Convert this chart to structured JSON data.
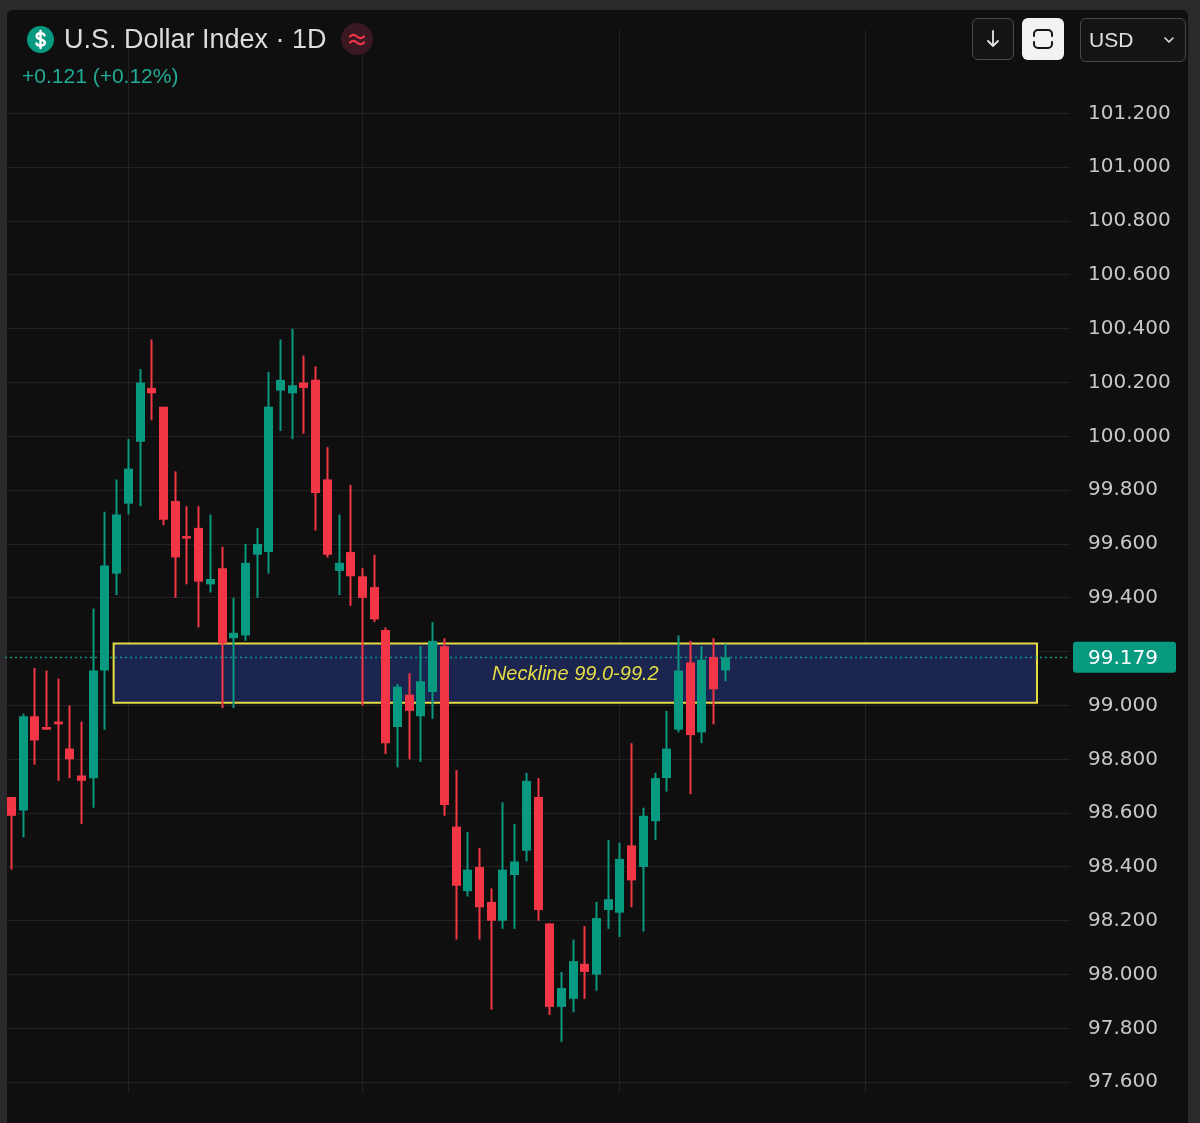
{
  "chart_data": {
    "type": "candlestick",
    "title": "U.S. Dollar Index · 1D",
    "subtitle": "+0.121 (+0.12%)",
    "categories": [
      null,
      null,
      null,
      null,
      null,
      null,
      null,
      null,
      null,
      null,
      null,
      null,
      null,
      null,
      null,
      null,
      null,
      null,
      null,
      null,
      null,
      null,
      null,
      null,
      null,
      null,
      null,
      null,
      null,
      null,
      null,
      null,
      null,
      null,
      null,
      null,
      null,
      null,
      null,
      null,
      null,
      null,
      null,
      null,
      null,
      null,
      null,
      null,
      null,
      null,
      null,
      null,
      null,
      null,
      null,
      null,
      null,
      null,
      null,
      null,
      null,
      null,
      null,
      null,
      null,
      null,
      null,
      null,
      null,
      null,
      null,
      null,
      null,
      null,
      null,
      null,
      null,
      null,
      null,
      null,
      null,
      null,
      null,
      null,
      null,
      null,
      null,
      null,
      null,
      null,
      null
    ],
    "ohlc": [
      [
        98.66,
        98.66,
        98.39,
        98.59
      ],
      [
        98.61,
        98.97,
        98.51,
        98.96
      ],
      [
        98.96,
        99.14,
        98.78,
        98.87
      ],
      [
        98.92,
        99.13,
        98.91,
        98.91
      ],
      [
        98.94,
        99.1,
        98.72,
        98.93
      ],
      [
        98.84,
        99.0,
        98.73,
        98.8
      ],
      [
        98.74,
        98.94,
        98.56,
        98.72
      ],
      [
        98.73,
        99.36,
        98.62,
        99.13
      ],
      [
        99.13,
        99.72,
        98.91,
        99.52
      ],
      [
        99.49,
        99.84,
        99.41,
        99.71
      ],
      [
        99.75,
        99.99,
        99.71,
        99.88
      ],
      [
        99.98,
        100.25,
        99.74,
        100.2
      ],
      [
        100.18,
        100.36,
        100.06,
        100.16
      ],
      [
        100.11,
        100.11,
        99.67,
        99.69
      ],
      [
        99.76,
        99.87,
        99.4,
        99.55
      ],
      [
        99.63,
        99.74,
        99.45,
        99.62
      ],
      [
        99.66,
        99.74,
        99.29,
        99.46
      ],
      [
        99.45,
        99.71,
        99.42,
        99.47
      ],
      [
        99.51,
        99.59,
        98.99,
        99.23
      ],
      [
        99.25,
        99.4,
        98.99,
        99.27
      ],
      [
        99.26,
        99.6,
        99.24,
        99.53
      ],
      [
        99.56,
        99.66,
        99.4,
        99.6
      ],
      [
        99.57,
        100.24,
        99.49,
        100.11
      ],
      [
        100.17,
        100.36,
        100.02,
        100.21
      ],
      [
        100.16,
        100.4,
        99.99,
        100.19
      ],
      [
        100.2,
        100.3,
        100.01,
        100.18
      ],
      [
        100.21,
        100.26,
        99.65,
        99.79
      ],
      [
        99.84,
        99.96,
        99.55,
        99.56
      ],
      [
        99.5,
        99.71,
        99.41,
        99.53
      ],
      [
        99.57,
        99.82,
        99.37,
        99.48
      ],
      [
        99.48,
        99.51,
        99.0,
        99.4
      ],
      [
        99.44,
        99.56,
        99.31,
        99.32
      ],
      [
        99.28,
        99.29,
        98.82,
        98.86
      ],
      [
        98.92,
        99.08,
        98.77,
        99.07
      ],
      [
        99.04,
        99.12,
        98.8,
        98.98
      ],
      [
        98.96,
        99.22,
        98.79,
        99.09
      ],
      [
        99.05,
        99.31,
        98.95,
        99.24
      ],
      [
        99.22,
        99.25,
        98.59,
        98.63
      ],
      [
        98.55,
        98.76,
        98.13,
        98.33
      ],
      [
        98.31,
        98.53,
        98.29,
        98.39
      ],
      [
        98.4,
        98.47,
        98.13,
        98.25
      ],
      [
        98.27,
        98.32,
        97.87,
        98.2
      ],
      [
        98.2,
        98.64,
        98.17,
        98.39
      ],
      [
        98.37,
        98.56,
        98.17,
        98.42
      ],
      [
        98.46,
        98.75,
        98.42,
        98.72
      ],
      [
        98.66,
        98.73,
        98.2,
        98.24
      ],
      [
        98.19,
        98.19,
        97.85,
        97.88
      ],
      [
        97.88,
        98.01,
        97.75,
        97.95
      ],
      [
        97.91,
        98.13,
        97.86,
        98.05
      ],
      [
        98.04,
        98.18,
        97.91,
        98.01
      ],
      [
        98.0,
        98.27,
        97.94,
        98.21
      ],
      [
        98.24,
        98.5,
        98.17,
        98.28
      ],
      [
        98.23,
        98.49,
        98.14,
        98.43
      ],
      [
        98.48,
        98.86,
        98.25,
        98.35
      ],
      [
        98.4,
        98.62,
        98.16,
        98.59
      ],
      [
        98.57,
        98.75,
        98.5,
        98.73
      ],
      [
        98.73,
        98.98,
        98.68,
        98.84
      ],
      [
        98.91,
        99.26,
        98.9,
        99.13
      ],
      [
        99.16,
        99.24,
        98.67,
        98.89
      ],
      [
        98.9,
        99.22,
        98.86,
        99.17
      ],
      [
        99.18,
        99.25,
        98.93,
        99.06
      ],
      [
        99.13,
        99.23,
        99.09,
        99.179
      ],
      null,
      null,
      null,
      null,
      null,
      null,
      null,
      null,
      null,
      null,
      null,
      null,
      null,
      null,
      null,
      null,
      null,
      null,
      null,
      null,
      null,
      null,
      null,
      null,
      null,
      null,
      null,
      null,
      null
    ],
    "colors": [
      "#f23645",
      "#089981",
      "#f23645",
      "#f23645",
      "#f23645",
      "#f23645",
      "#f23645",
      "#089981",
      "#089981",
      "#089981",
      "#089981",
      "#089981",
      "#f23645",
      "#f23645",
      "#f23645",
      "#f23645",
      "#f23645",
      "#089981",
      "#f23645",
      "#089981",
      "#089981",
      "#089981",
      "#089981",
      "#089981",
      "#089981",
      "#f23645",
      "#f23645",
      "#f23645",
      "#089981",
      "#f23645",
      "#f23645",
      "#f23645",
      "#f23645",
      "#089981",
      "#f23645",
      "#089981",
      "#089981",
      "#f23645",
      "#f23645",
      "#089981",
      "#f23645",
      "#f23645",
      "#089981",
      "#089981",
      "#089981",
      "#f23645",
      "#f23645",
      "#089981",
      "#089981",
      "#f23645",
      "#089981",
      "#089981",
      "#089981",
      "#f23645",
      "#089981",
      "#089981",
      "#089981",
      "#089981",
      "#f23645",
      "#089981",
      "#f23645",
      "#089981",
      null,
      null,
      null,
      null,
      null,
      null,
      null,
      null,
      null,
      null,
      null,
      null,
      null,
      null,
      null,
      null,
      null,
      null,
      null,
      null,
      null,
      null,
      null,
      null,
      null,
      null,
      null,
      null,
      null
    ],
    "ylim": [
      97.56,
      101.51
    ],
    "yticks": [
      {
        "value": 97.6,
        "label": "97.600"
      },
      {
        "value": 97.8,
        "label": "97.800"
      },
      {
        "value": 98.0,
        "label": "98.000"
      },
      {
        "value": 98.2,
        "label": "98.200"
      },
      {
        "value": 98.4,
        "label": "98.400"
      },
      {
        "value": 98.6,
        "label": "98.600"
      },
      {
        "value": 98.8,
        "label": "98.800"
      },
      {
        "value": 99.0,
        "label": "99.000"
      },
      {
        "value": 99.2,
        "label": null
      },
      {
        "value": 99.4,
        "label": "99.400"
      },
      {
        "value": 99.6,
        "label": "99.600"
      },
      {
        "value": 99.8,
        "label": "99.800"
      },
      {
        "value": 100.0,
        "label": "100.000"
      },
      {
        "value": 100.2,
        "label": "100.200"
      },
      {
        "value": 100.4,
        "label": "100.400"
      },
      {
        "value": 100.6,
        "label": "100.600"
      },
      {
        "value": 100.8,
        "label": "100.800"
      },
      {
        "value": 101.0,
        "label": "101.000"
      },
      {
        "value": 101.2,
        "label": "101.200"
      }
    ],
    "tick_labels": "y",
    "grid": true,
    "bands": [
      {
        "axis": "y",
        "from": 99.01,
        "to": 99.23,
        "label": "Neckline 99.0-99.2",
        "color": "#1c2550"
      }
    ],
    "ref_lines": [
      {
        "axis": "y",
        "value": 99.179,
        "label": "99.179",
        "color": "#089981",
        "line_style": "dotted"
      }
    ],
    "annotations": [
      "USD"
    ]
  }
}
